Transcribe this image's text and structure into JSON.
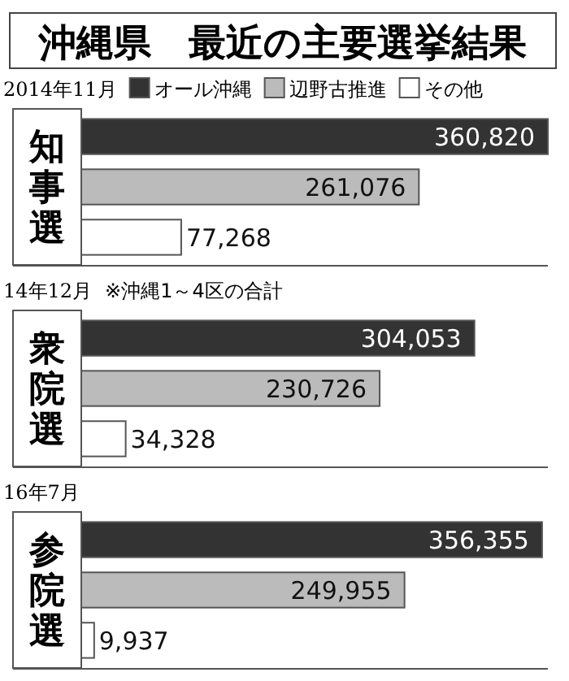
{
  "chart_data": [
    {
      "type": "bar",
      "orientation": "horizontal",
      "title": "沖縄県　最近の主要選挙結果",
      "subtitle": "2014年11月",
      "categories": [
        "知事選"
      ],
      "tick_labels": "y",
      "legend": "top",
      "series": [
        {
          "name": "オール沖縄",
          "color": "#333333",
          "values": [
            360820
          ],
          "value_labels": [
            "360,820"
          ]
        },
        {
          "name": "辺野古推進",
          "color": "#bbbbbb",
          "values": [
            261076
          ],
          "value_labels": [
            "261,076"
          ]
        },
        {
          "name": "その他",
          "color": "#ffffff",
          "values": [
            77268
          ],
          "value_labels": [
            "77,268"
          ]
        }
      ]
    },
    {
      "type": "bar",
      "orientation": "horizontal",
      "subtitle": "14年12月",
      "annotations": [
        "※沖縄1～4区の合計"
      ],
      "categories": [
        "衆院選"
      ],
      "tick_labels": "y",
      "series": [
        {
          "color": "#333333",
          "values": [
            304053
          ],
          "value_labels": [
            "304,053"
          ]
        },
        {
          "color": "#bbbbbb",
          "values": [
            230726
          ],
          "value_labels": [
            "230,726"
          ]
        },
        {
          "color": "#ffffff",
          "values": [
            34328
          ],
          "value_labels": [
            "34,328"
          ]
        }
      ]
    },
    {
      "type": "bar",
      "orientation": "horizontal",
      "subtitle": "16年7月",
      "categories": [
        "参院選"
      ],
      "tick_labels": "y",
      "series": [
        {
          "color": "#333333",
          "values": [
            356355
          ],
          "value_labels": [
            "356,355"
          ]
        },
        {
          "color": "#bbbbbb",
          "values": [
            249955
          ],
          "value_labels": [
            "249,955"
          ]
        },
        {
          "color": "#ffffff",
          "values": [
            9937
          ],
          "value_labels": [
            "9,937"
          ]
        }
      ]
    }
  ]
}
